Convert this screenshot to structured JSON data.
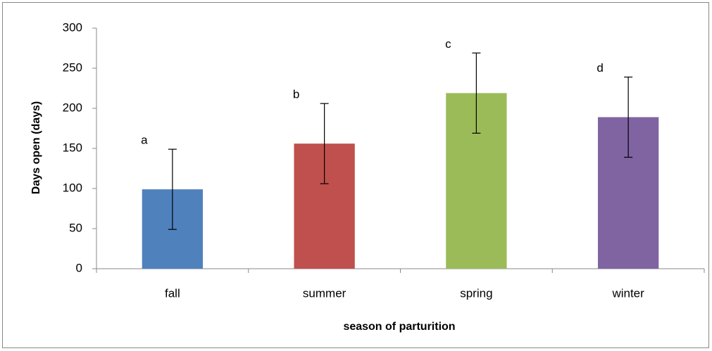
{
  "chart_data": {
    "type": "bar",
    "x_label": "season of parturition",
    "y_label": "Days open (days)",
    "categories": [
      "fall",
      "summer",
      "spring",
      "winter"
    ],
    "values": [
      99,
      156,
      219,
      189
    ],
    "errors": [
      50,
      50,
      50,
      50
    ],
    "significance_labels": [
      "a",
      "b",
      "c",
      "d"
    ],
    "colors": [
      "#4f81bd",
      "#c0504d",
      "#9bbb59",
      "#8064a2"
    ],
    "ylim": [
      0,
      300
    ],
    "yticks": [
      0,
      50,
      100,
      150,
      200,
      250,
      300
    ],
    "grid": false
  }
}
